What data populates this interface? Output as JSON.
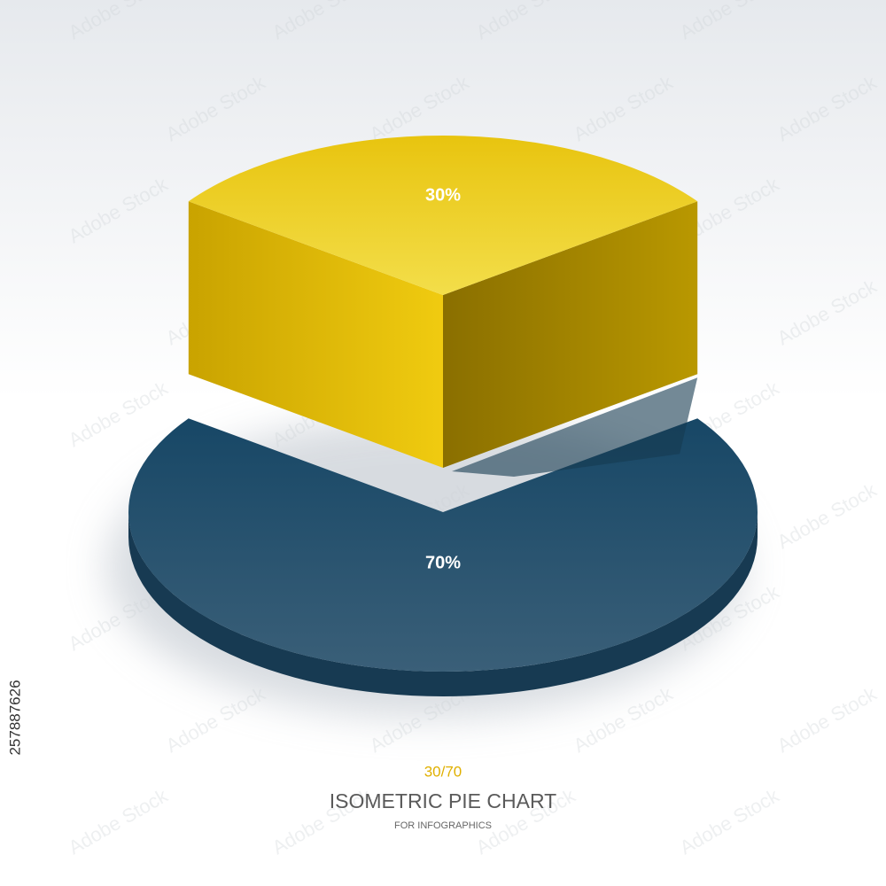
{
  "chart_data": {
    "type": "pie3d",
    "title": "ISOMETRIC PIE CHART",
    "subtitle": "FOR INFOGRAPHICS",
    "caption": "30/70",
    "values": [
      30,
      70
    ],
    "value_labels": [
      "30%",
      "70%"
    ],
    "colors": [
      "#e6c21a",
      "#1d4b68"
    ]
  },
  "watermark": "Adobe Stock",
  "stock_id": "257887626"
}
